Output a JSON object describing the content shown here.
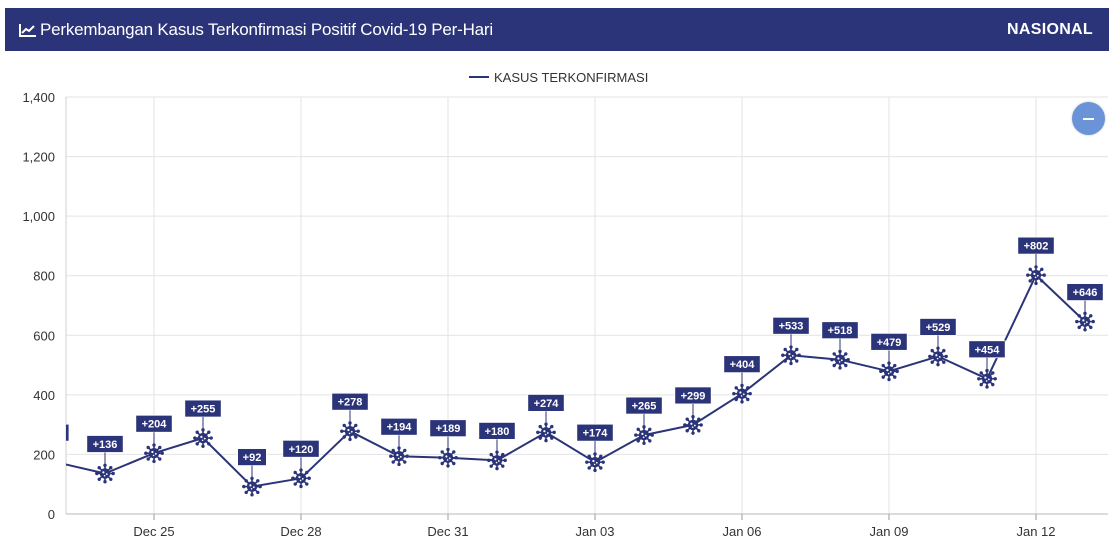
{
  "header": {
    "title": "Perkembangan Kasus Terkonfirmasi Positif Covid-19 Per-Hari",
    "region": "NASIONAL",
    "background": "#2b3479"
  },
  "zoom_button": {
    "icon": "minus-icon",
    "color": "#6a93d8"
  },
  "chart_data": {
    "type": "line",
    "legend": {
      "label": "KASUS TERKONFIRMASI",
      "position": "top-center"
    },
    "ylim": [
      0,
      1400
    ],
    "yticks": [
      0,
      200,
      400,
      600,
      800,
      1000,
      1200,
      1400
    ],
    "ytick_labels": [
      "0",
      "200",
      "400",
      "600",
      "800",
      "1,000",
      "1,200",
      "1,400"
    ],
    "xtick_labels": [
      "Dec 25",
      "Dec 28",
      "Dec 31",
      "Jan 03",
      "Jan 06",
      "Jan 09",
      "Jan 12"
    ],
    "grid": true,
    "line_color": "#2b3479",
    "series": [
      {
        "name": "KASUS TERKONFIRMASI",
        "points": [
          {
            "date": "Dec 23",
            "value": 174
          },
          {
            "date": "Dec 24",
            "value": 136,
            "label": "+136"
          },
          {
            "date": "Dec 25",
            "value": 204,
            "label": "+204"
          },
          {
            "date": "Dec 26",
            "value": 255,
            "label": "+255"
          },
          {
            "date": "Dec 27",
            "value": 92,
            "label": "+92"
          },
          {
            "date": "Dec 28",
            "value": 120,
            "label": "+120"
          },
          {
            "date": "Dec 29",
            "value": 278,
            "label": "+278"
          },
          {
            "date": "Dec 30",
            "value": 194,
            "label": "+194"
          },
          {
            "date": "Dec 31",
            "value": 189,
            "label": "+189"
          },
          {
            "date": "Jan 01",
            "value": 180,
            "label": "+180"
          },
          {
            "date": "Jan 02",
            "value": 274,
            "label": "+274"
          },
          {
            "date": "Jan 03",
            "value": 174,
            "label": "+174"
          },
          {
            "date": "Jan 04",
            "value": 265,
            "label": "+265"
          },
          {
            "date": "Jan 05",
            "value": 299,
            "label": "+299"
          },
          {
            "date": "Jan 06",
            "value": 404,
            "label": "+404"
          },
          {
            "date": "Jan 07",
            "value": 533,
            "label": "+533"
          },
          {
            "date": "Jan 08",
            "value": 518,
            "label": "+518"
          },
          {
            "date": "Jan 09",
            "value": 479,
            "label": "+479"
          },
          {
            "date": "Jan 10",
            "value": 529,
            "label": "+529"
          },
          {
            "date": "Jan 11",
            "value": 454,
            "label": "+454"
          },
          {
            "date": "Jan 12",
            "value": 802,
            "label": "+802"
          },
          {
            "date": "Jan 13",
            "value": 646,
            "label": "+646"
          }
        ]
      }
    ]
  }
}
